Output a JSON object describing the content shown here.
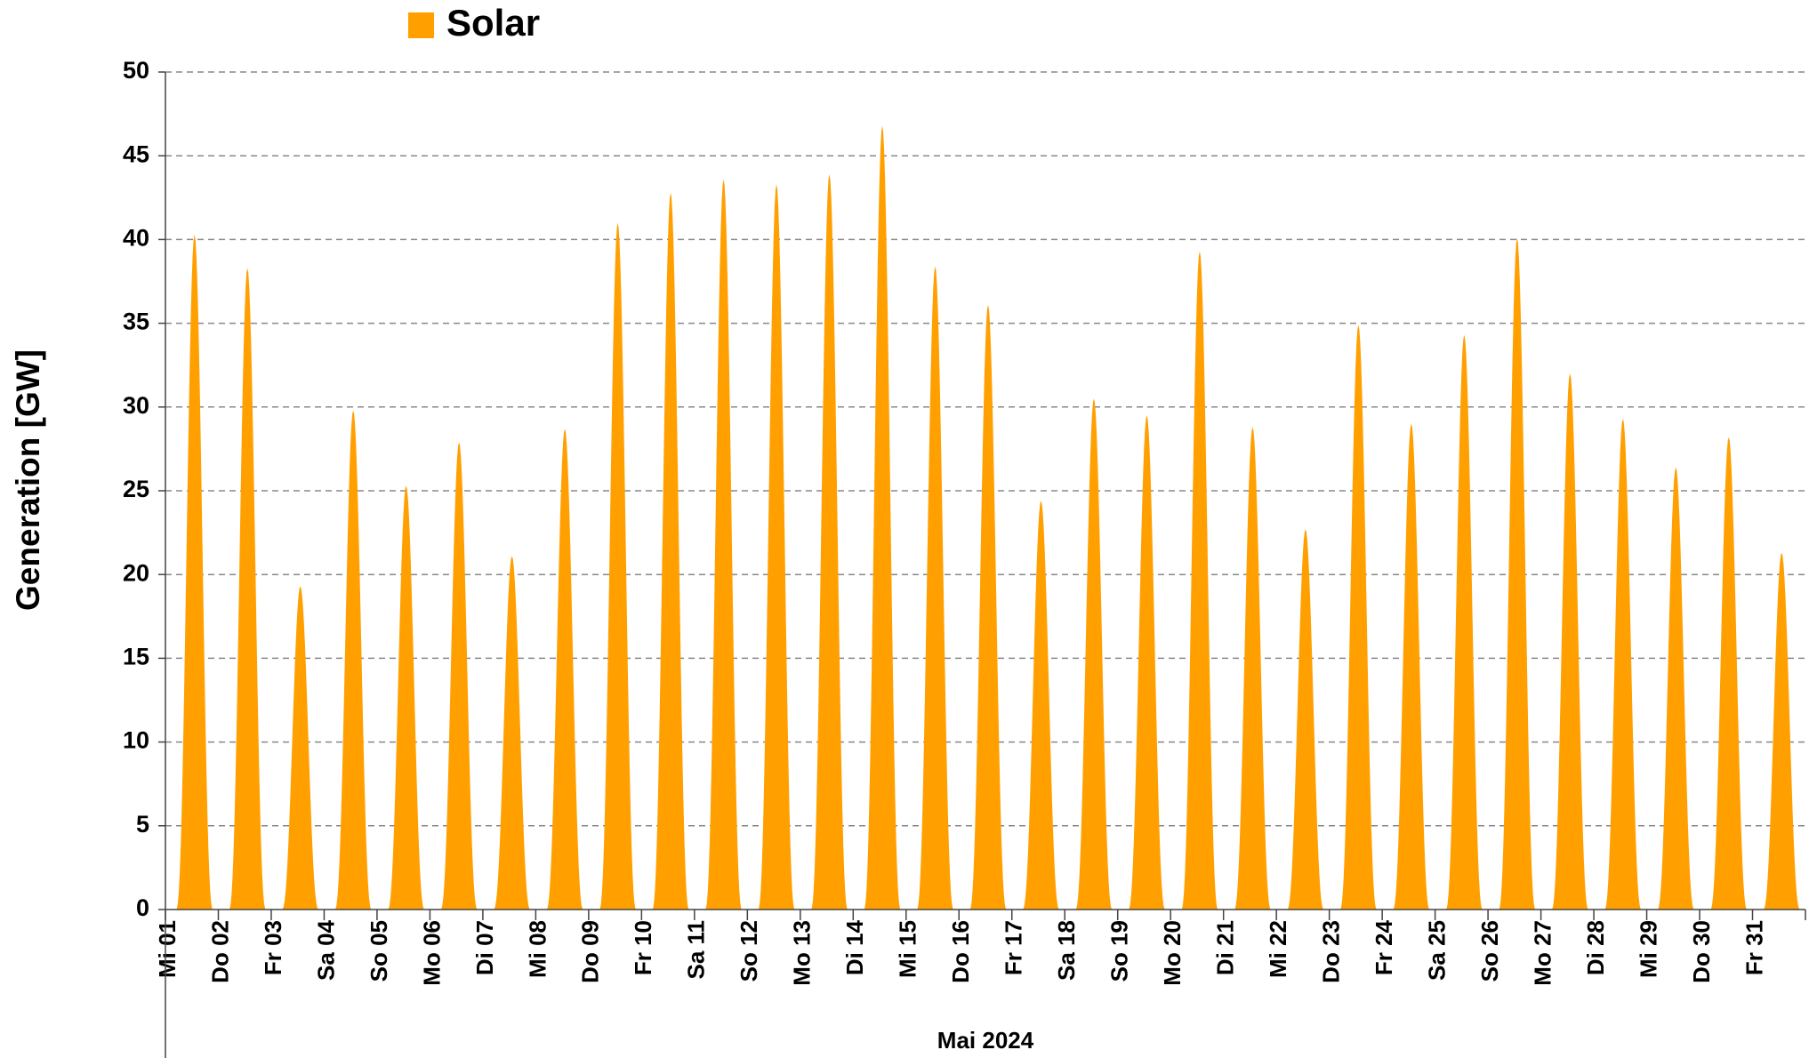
{
  "chart_data": {
    "type": "area",
    "legend_label": "Solar",
    "y_label": "Generation   [GW]",
    "group_label": "Mai 2024",
    "categories": [
      "Mi 01",
      "Do 02",
      "Fr 03",
      "Sa 04",
      "So 05",
      "Mo 06",
      "Di 07",
      "Mi 08",
      "Do 09",
      "Fr 10",
      "Sa 11",
      "So 12",
      "Mo 13",
      "Di 14",
      "Mi 15",
      "Do 16",
      "Fr 17",
      "Sa 18",
      "So 19",
      "Mo 20",
      "Di 21",
      "Mi 22",
      "Do 23",
      "Fr 24",
      "Sa 25",
      "So 26",
      "Mo 27",
      "Di 28",
      "Mi 29",
      "Do 30",
      "Fr 31"
    ],
    "series": [
      {
        "name": "Solar",
        "color": "#ffa000",
        "values": [
          40.3,
          38.3,
          19.3,
          29.8,
          25.3,
          27.9,
          21.1,
          28.7,
          41.0,
          42.8,
          43.6,
          43.3,
          43.9,
          46.8,
          38.4,
          36.1,
          24.4,
          30.5,
          29.5,
          39.3,
          28.8,
          22.7,
          34.9,
          29.0,
          34.3,
          40.1,
          32.0,
          29.3,
          26.4,
          28.2,
          21.3
        ]
      }
    ],
    "ylim": [
      0,
      50
    ],
    "yticks": [
      0,
      5,
      10,
      15,
      20,
      25,
      30,
      35,
      40,
      45,
      50
    ],
    "grid": true
  }
}
